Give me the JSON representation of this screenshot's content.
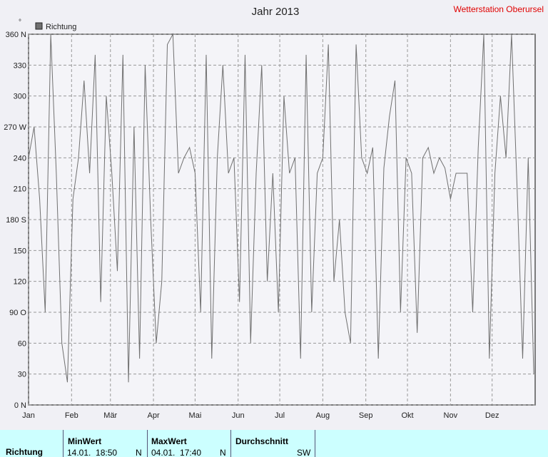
{
  "chart_data": {
    "type": "line",
    "title": "Jahr 2013",
    "y_unit": "°",
    "x": [
      0,
      4,
      8,
      12,
      16,
      20,
      24,
      28,
      32,
      36,
      40,
      44,
      48,
      52,
      56,
      60,
      64,
      68,
      72,
      76,
      80,
      84,
      88,
      92,
      96,
      100,
      104,
      108,
      112,
      116,
      120,
      124,
      128,
      132,
      136,
      140,
      144,
      148,
      152,
      156,
      160,
      164,
      168,
      172,
      176,
      180,
      184,
      188,
      192,
      196,
      200,
      204,
      208,
      212,
      216,
      220,
      224,
      228,
      232,
      236,
      240,
      244,
      248,
      252,
      256,
      260,
      264,
      268,
      272,
      276,
      280,
      284,
      288,
      292,
      296,
      300,
      304,
      308,
      312,
      316,
      320,
      324,
      328,
      332,
      336,
      340,
      344,
      348,
      352,
      356,
      360,
      364
    ],
    "series": [
      {
        "name": "Richtung",
        "color": "#707070",
        "values": [
          240,
          270,
          200,
          90,
          360,
          225,
          60,
          22,
          200,
          240,
          315,
          225,
          340,
          100,
          300,
          225,
          130,
          340,
          22,
          270,
          45,
          330,
          180,
          60,
          120,
          350,
          360,
          225,
          240,
          250,
          225,
          90,
          340,
          45,
          240,
          330,
          225,
          240,
          100,
          340,
          60,
          225,
          330,
          120,
          225,
          90,
          300,
          225,
          240,
          45,
          340,
          90,
          225,
          240,
          350,
          120,
          180,
          90,
          60,
          350,
          240,
          225,
          250,
          45,
          230,
          280,
          315,
          90,
          240,
          225,
          70,
          240,
          250,
          225,
          240,
          230,
          200,
          225,
          225,
          225,
          90,
          250,
          360,
          45,
          225,
          300,
          240,
          360,
          210,
          45,
          240,
          30
        ]
      }
    ],
    "xlim": [
      0,
      365
    ],
    "xticks": [
      {
        "value": 0,
        "label": "Jan"
      },
      {
        "value": 31,
        "label": "Feb"
      },
      {
        "value": 59,
        "label": "Mär"
      },
      {
        "value": 90,
        "label": "Apr"
      },
      {
        "value": 120,
        "label": "Mai"
      },
      {
        "value": 151,
        "label": "Jun"
      },
      {
        "value": 181,
        "label": "Jul"
      },
      {
        "value": 212,
        "label": "Aug"
      },
      {
        "value": 243,
        "label": "Sep"
      },
      {
        "value": 273,
        "label": "Okt"
      },
      {
        "value": 304,
        "label": "Nov"
      },
      {
        "value": 334,
        "label": "Dez"
      }
    ],
    "ylim": [
      0,
      360
    ],
    "yticks": [
      {
        "value": 0,
        "label": "0 N"
      },
      30,
      60,
      {
        "value": 90,
        "label": "90 O"
      },
      120,
      150,
      {
        "value": 180,
        "label": "180 S"
      },
      210,
      240,
      {
        "value": 270,
        "label": "270 W"
      },
      300,
      330,
      {
        "value": 360,
        "label": "360 N"
      }
    ],
    "grid": true,
    "legend": "top-left"
  },
  "header": {
    "station": "Wetterstation Oberursel"
  },
  "table": {
    "row_label": "Richtung",
    "headers": [
      "MinWert",
      "MaxWert",
      "Durchschnitt"
    ],
    "cells": [
      [
        "14.01.  18:50",
        "N"
      ],
      [
        "04.01.  17:40",
        "N"
      ],
      [
        "",
        "SW"
      ]
    ]
  }
}
